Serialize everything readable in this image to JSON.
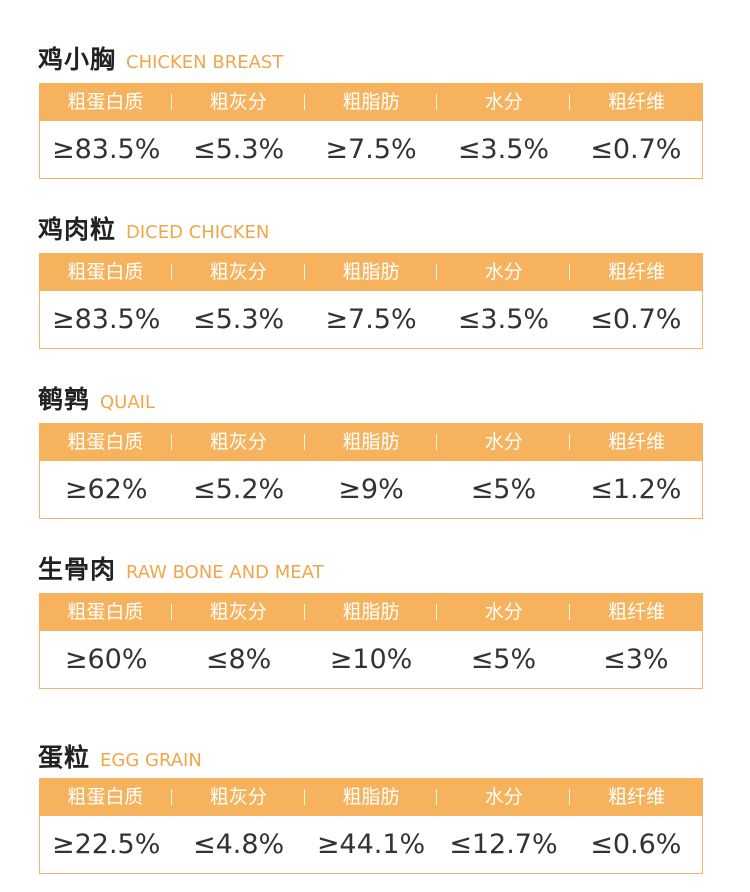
{
  "sections": [
    {
      "title_cn": "鸡小胸",
      "title_en": "CHICKEN BREAST",
      "headers": [
        "粗蛋白质",
        "粗灰分",
        "粗脂肪",
        "水分",
        "粗纤维"
      ],
      "values": [
        "≥83.5%",
        "≤5.3%",
        "≥7.5%",
        "≤3.5%",
        "≤0.7%"
      ]
    },
    {
      "title_cn": "鸡肉粒",
      "title_en": "DICED CHICKEN",
      "headers": [
        "粗蛋白质",
        "粗灰分",
        "粗脂肪",
        "水分",
        "粗纤维"
      ],
      "values": [
        "≥83.5%",
        "≤5.3%",
        "≥7.5%",
        "≤3.5%",
        "≤0.7%"
      ]
    },
    {
      "title_cn": "鹌鹑",
      "title_en": "QUAIL",
      "headers": [
        "粗蛋白质",
        "粗灰分",
        "粗脂肪",
        "水分",
        "粗纤维"
      ],
      "values": [
        "≥62%",
        "≤5.2%",
        "≥9%",
        "≤5%",
        "≤1.2%"
      ]
    },
    {
      "title_cn": "生骨肉",
      "title_en": "RAW BONE AND MEAT",
      "headers": [
        "粗蛋白质",
        "粗灰分",
        "粗脂肪",
        "水分",
        "粗纤维"
      ],
      "values": [
        "≥60%",
        "≤8%",
        "≥10%",
        "≤5%",
        "≤3%"
      ]
    },
    {
      "title_cn": "蛋粒",
      "title_en": "EGG GRAIN",
      "headers": [
        "粗蛋白质",
        "粗灰分",
        "粗脂肪",
        "水分",
        "粗纤维"
      ],
      "values": [
        "≥22.5%",
        "≤4.8%",
        "≥44.1%",
        "≤12.7%",
        "≤0.6%"
      ]
    }
  ],
  "colors": {
    "header_bg": "#f6b25c",
    "accent_text": "#f0a64b",
    "border": "#f3b56a",
    "title_text": "#222222",
    "value_text": "#333333"
  }
}
